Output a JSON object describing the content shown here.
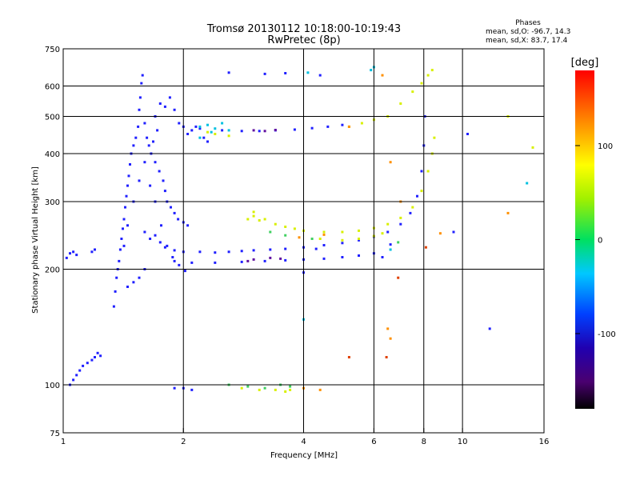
{
  "chart_data": {
    "type": "scatter",
    "title": "Tromsø 20130112 10:18:00-10:19:43",
    "subtitle": "RwPretec (8p)",
    "xlabel": "Frequency [MHz]",
    "ylabel": "Stationary phase Virtual Height [km]",
    "x_scale": "log",
    "y_scale": "log",
    "xlim": [
      1,
      16
    ],
    "ylim": [
      75,
      750
    ],
    "x_ticks": [
      1,
      2,
      4,
      6,
      8,
      10,
      16
    ],
    "x_tick_labels": [
      "1",
      "2",
      "4",
      "6",
      "8",
      "10",
      "16"
    ],
    "y_ticks": [
      75,
      100,
      200,
      300,
      400,
      500,
      600,
      750
    ],
    "y_tick_labels": [
      "75",
      "100",
      "200",
      "300",
      "400",
      "500",
      "600",
      "750"
    ],
    "grid": true,
    "stats": {
      "header": "Phases",
      "line1": "mean, sd,O: -96.7, 14.3",
      "line2": "mean, sd,X: 83.7, 17.4"
    },
    "colorbar": {
      "label": "[deg]",
      "min": -180,
      "max": 180,
      "ticks": [
        100,
        0,
        -100
      ],
      "tick_labels": [
        "100",
        "0",
        "-100"
      ]
    },
    "series": [
      {
        "color": "#2020ff",
        "points": [
          [
            1.04,
            100
          ],
          [
            1.06,
            103
          ],
          [
            1.08,
            106
          ],
          [
            1.1,
            109
          ],
          [
            1.12,
            112
          ],
          [
            1.15,
            114
          ],
          [
            1.18,
            116
          ],
          [
            1.2,
            118
          ],
          [
            1.22,
            121
          ],
          [
            1.24,
            119
          ],
          [
            1.02,
            214
          ],
          [
            1.04,
            220
          ],
          [
            1.06,
            222
          ],
          [
            1.08,
            218
          ],
          [
            1.18,
            222
          ],
          [
            1.34,
            160
          ],
          [
            1.35,
            175
          ],
          [
            1.36,
            190
          ],
          [
            1.37,
            200
          ],
          [
            1.38,
            210
          ],
          [
            1.39,
            225
          ],
          [
            1.4,
            240
          ],
          [
            1.41,
            255
          ],
          [
            1.42,
            270
          ],
          [
            1.43,
            290
          ],
          [
            1.44,
            310
          ],
          [
            1.45,
            330
          ],
          [
            1.46,
            350
          ],
          [
            1.47,
            375
          ],
          [
            1.48,
            400
          ],
          [
            1.5,
            420
          ],
          [
            1.52,
            440
          ],
          [
            1.54,
            470
          ],
          [
            1.55,
            520
          ],
          [
            1.56,
            560
          ],
          [
            1.57,
            610
          ],
          [
            1.58,
            640
          ],
          [
            1.6,
            480
          ],
          [
            1.62,
            440
          ],
          [
            1.64,
            420
          ],
          [
            1.66,
            400
          ],
          [
            1.7,
            380
          ],
          [
            1.74,
            360
          ],
          [
            1.78,
            340
          ],
          [
            1.8,
            320
          ],
          [
            1.82,
            300
          ],
          [
            1.86,
            290
          ],
          [
            1.9,
            280
          ],
          [
            1.94,
            270
          ],
          [
            2.0,
            265
          ],
          [
            2.05,
            260
          ],
          [
            1.5,
            185
          ],
          [
            1.55,
            190
          ],
          [
            1.6,
            200
          ],
          [
            1.45,
            180
          ],
          [
            1.6,
            250
          ],
          [
            1.65,
            240
          ],
          [
            1.7,
            245
          ],
          [
            1.75,
            235
          ],
          [
            1.8,
            530
          ],
          [
            1.85,
            560
          ],
          [
            1.9,
            520
          ],
          [
            1.95,
            480
          ],
          [
            2.0,
            470
          ],
          [
            1.7,
            500
          ],
          [
            1.75,
            540
          ],
          [
            1.72,
            460
          ],
          [
            1.68,
            430
          ],
          [
            1.42,
            230
          ],
          [
            1.45,
            260
          ],
          [
            1.5,
            300
          ],
          [
            1.55,
            340
          ],
          [
            1.6,
            380
          ],
          [
            1.65,
            330
          ],
          [
            1.7,
            300
          ],
          [
            1.76,
            260
          ],
          [
            1.82,
            230
          ],
          [
            1.88,
            215
          ],
          [
            1.95,
            205
          ],
          [
            2.02,
            198
          ],
          [
            1.8,
            228
          ],
          [
            1.9,
            224
          ],
          [
            2.0,
            222
          ],
          [
            2.2,
            222
          ],
          [
            2.4,
            221
          ],
          [
            2.6,
            222
          ],
          [
            2.8,
            223
          ],
          [
            3.0,
            224
          ],
          [
            3.3,
            225
          ],
          [
            3.6,
            226
          ],
          [
            4.0,
            228
          ],
          [
            4.5,
            231
          ],
          [
            5.0,
            234
          ],
          [
            5.5,
            238
          ],
          [
            6.0,
            243
          ],
          [
            6.5,
            250
          ],
          [
            7.0,
            262
          ],
          [
            7.4,
            280
          ],
          [
            7.7,
            310
          ],
          [
            7.9,
            360
          ],
          [
            8.0,
            420
          ],
          [
            8.05,
            500
          ],
          [
            1.9,
            210
          ],
          [
            2.1,
            208
          ],
          [
            2.4,
            208
          ],
          [
            2.8,
            209
          ],
          [
            3.2,
            210
          ],
          [
            3.6,
            211
          ],
          [
            4.0,
            212
          ],
          [
            4.5,
            213
          ],
          [
            5.0,
            215
          ],
          [
            5.5,
            217
          ],
          [
            6.0,
            220
          ],
          [
            2.2,
            465
          ],
          [
            2.5,
            460
          ],
          [
            2.8,
            458
          ],
          [
            3.1,
            458
          ],
          [
            3.4,
            460
          ],
          [
            3.8,
            462
          ],
          [
            4.2,
            466
          ],
          [
            4.6,
            470
          ],
          [
            5.0,
            475
          ],
          [
            2.1,
            460
          ],
          [
            2.15,
            470
          ],
          [
            2.05,
            450
          ],
          [
            2.25,
            440
          ],
          [
            2.3,
            430
          ],
          [
            1.9,
            98
          ],
          [
            2.0,
            98
          ],
          [
            2.1,
            97
          ],
          [
            2.6,
            650
          ],
          [
            3.2,
            645
          ],
          [
            3.6,
            648
          ],
          [
            4.4,
            640
          ],
          [
            1.2,
            225
          ],
          [
            4.0,
            196
          ],
          [
            4.3,
            226
          ],
          [
            6.3,
            215
          ],
          [
            6.6,
            232
          ],
          [
            9.5,
            250
          ],
          [
            11.7,
            140
          ],
          [
            10.3,
            450
          ]
        ]
      },
      {
        "color": "#d8f000",
        "points": [
          [
            3.0,
            282
          ],
          [
            3.2,
            270
          ],
          [
            3.4,
            262
          ],
          [
            3.6,
            258
          ],
          [
            3.8,
            255
          ],
          [
            4.0,
            252
          ],
          [
            4.5,
            250
          ],
          [
            5.0,
            250
          ],
          [
            5.5,
            252
          ],
          [
            6.0,
            256
          ],
          [
            6.5,
            262
          ],
          [
            7.0,
            272
          ],
          [
            7.5,
            290
          ],
          [
            7.9,
            320
          ],
          [
            8.2,
            360
          ],
          [
            8.4,
            400
          ],
          [
            8.5,
            440
          ],
          [
            4.4,
            240
          ],
          [
            5.0,
            238
          ],
          [
            5.5,
            240
          ],
          [
            6.0,
            244
          ],
          [
            6.3,
            248
          ],
          [
            6.5,
            500
          ],
          [
            7.0,
            540
          ],
          [
            7.5,
            580
          ],
          [
            7.9,
            610
          ],
          [
            8.2,
            640
          ],
          [
            8.4,
            660
          ],
          [
            2.3,
            455
          ],
          [
            2.4,
            450
          ],
          [
            2.6,
            445
          ],
          [
            2.8,
            98
          ],
          [
            3.1,
            97
          ],
          [
            3.4,
            97
          ],
          [
            3.6,
            96
          ],
          [
            3.7,
            97
          ],
          [
            5.2,
            470
          ],
          [
            5.6,
            480
          ],
          [
            6.0,
            490
          ],
          [
            2.9,
            270
          ],
          [
            3.0,
            275
          ],
          [
            3.1,
            268
          ],
          [
            15.0,
            415
          ],
          [
            13.0,
            500
          ]
        ]
      },
      {
        "color": "#ff9000",
        "points": [
          [
            3.9,
            242
          ],
          [
            4.5,
            246
          ],
          [
            5.2,
            470
          ],
          [
            6.3,
            640
          ],
          [
            6.6,
            380
          ],
          [
            7.0,
            300
          ],
          [
            6.5,
            140
          ],
          [
            6.6,
            132
          ],
          [
            8.8,
            248
          ],
          [
            13.0,
            280
          ],
          [
            4.0,
            98
          ],
          [
            4.4,
            97
          ]
        ]
      },
      {
        "color": "#e04000",
        "points": [
          [
            6.45,
            118
          ],
          [
            6.9,
            190
          ],
          [
            8.1,
            228
          ],
          [
            5.2,
            118
          ]
        ]
      },
      {
        "color": "#00c0e0",
        "points": [
          [
            2.2,
            470
          ],
          [
            2.5,
            480
          ],
          [
            4.1,
            650
          ],
          [
            5.9,
            660
          ],
          [
            6.0,
            672
          ],
          [
            6.6,
            225
          ],
          [
            14.5,
            335
          ],
          [
            4.0,
            148
          ],
          [
            2.2,
            440
          ],
          [
            2.35,
            455
          ],
          [
            2.6,
            460
          ],
          [
            2.4,
            465
          ],
          [
            2.3,
            475
          ]
        ]
      },
      {
        "color": "#40d060",
        "points": [
          [
            2.6,
            100
          ],
          [
            2.9,
            99
          ],
          [
            3.2,
            98
          ],
          [
            3.5,
            100
          ],
          [
            3.7,
            99
          ],
          [
            3.3,
            250
          ],
          [
            3.6,
            245
          ],
          [
            4.2,
            240
          ],
          [
            6.9,
            235
          ]
        ]
      },
      {
        "color": "#6010a0",
        "points": [
          [
            3.0,
            460
          ],
          [
            3.2,
            458
          ],
          [
            3.4,
            461
          ],
          [
            2.9,
            210
          ],
          [
            3.0,
            212
          ],
          [
            3.3,
            214
          ],
          [
            3.5,
            213
          ]
        ]
      }
    ]
  }
}
